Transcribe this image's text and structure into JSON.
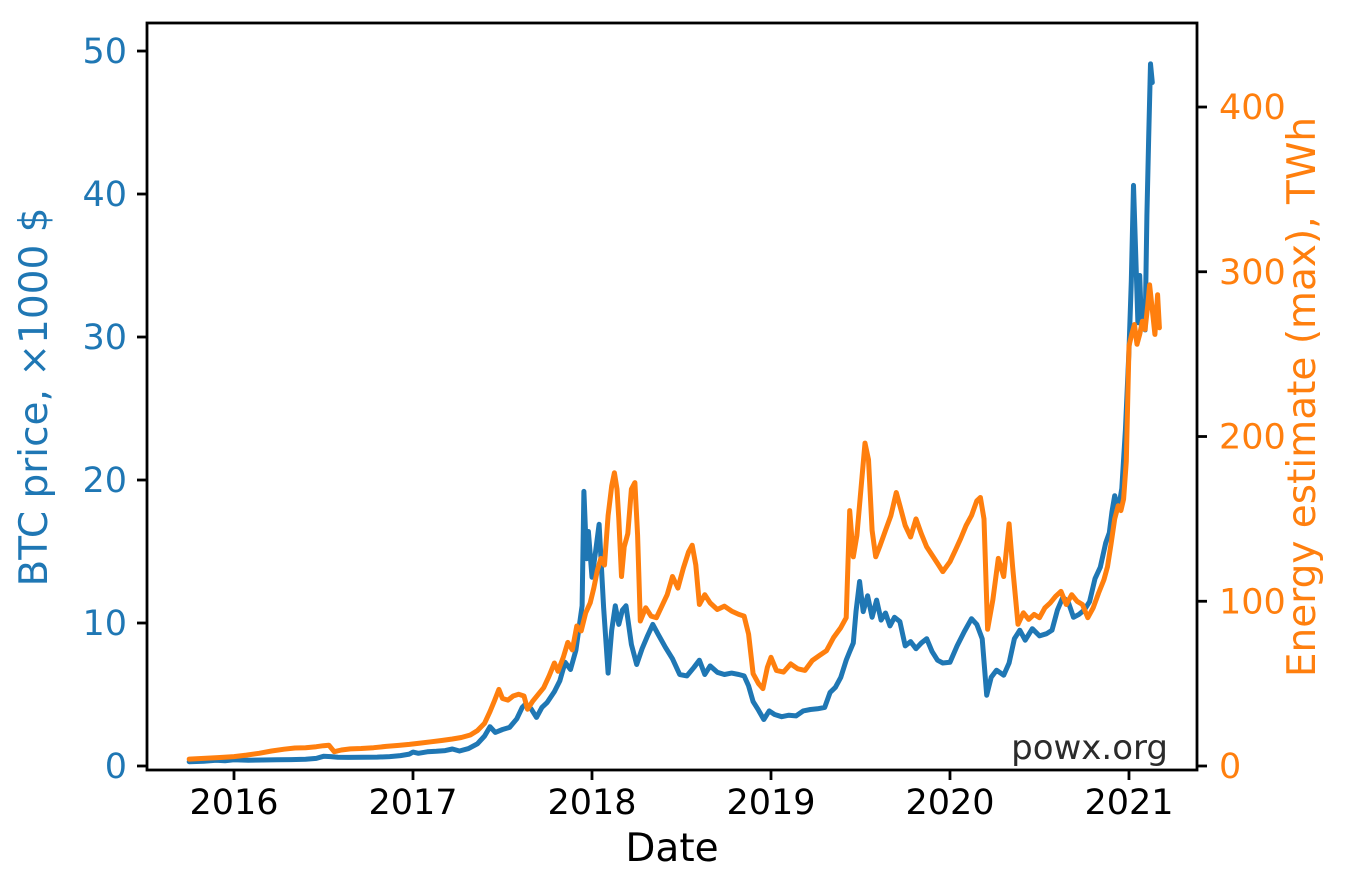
{
  "figure": {
    "watermark": "powx.org",
    "watermark_color": "#2b2b2b",
    "background": "#ffffff"
  },
  "chart_data": {
    "type": "line",
    "title": "",
    "xlabel": "Date",
    "ylabel_left": "BTC price, ×1000 $",
    "ylabel_right": "Energy estimate (max), TWh",
    "grid": false,
    "legend_position": "none",
    "x_ticks": [
      2016,
      2017,
      2018,
      2019,
      2020,
      2021
    ],
    "y_ticks_left": [
      0,
      10,
      20,
      30,
      40,
      50
    ],
    "y_ticks_right": [
      0,
      100,
      200,
      300,
      400
    ],
    "xlim": [
      2015.514,
      2021.38
    ],
    "ylim_left": [
      -0.28,
      51.96
    ],
    "ylim_right": [
      -2.43,
      451.0
    ],
    "tick_label_colors": {
      "x": "#000000",
      "left": "#1f77b4",
      "right": "#ff7f0e"
    },
    "axis_color": "#000000",
    "series": [
      {
        "id": "btc-price-line",
        "name": "BTC price, ×1000 $",
        "axis": "left",
        "color": "#1f77b4",
        "x": [
          2015.75,
          2015.83,
          2015.9,
          2015.95,
          2016.0,
          2016.08,
          2016.16,
          2016.24,
          2016.32,
          2016.4,
          2016.46,
          2016.5,
          2016.54,
          2016.58,
          2016.64,
          2016.72,
          2016.8,
          2016.87,
          2016.93,
          2016.98,
          2017.0,
          2017.03,
          2017.08,
          2017.13,
          2017.18,
          2017.22,
          2017.26,
          2017.31,
          2017.36,
          2017.4,
          2017.43,
          2017.46,
          2017.5,
          2017.54,
          2017.58,
          2017.61,
          2017.63,
          2017.66,
          2017.69,
          2017.72,
          2017.75,
          2017.79,
          2017.82,
          2017.85,
          2017.88,
          2017.91,
          2017.93,
          2017.945,
          2017.955,
          2017.97,
          2017.98,
          2018.0,
          2018.02,
          2018.04,
          2018.065,
          2018.09,
          2018.11,
          2018.13,
          2018.15,
          2018.17,
          2018.19,
          2018.22,
          2018.25,
          2018.28,
          2018.31,
          2018.34,
          2018.37,
          2018.41,
          2018.45,
          2018.49,
          2018.53,
          2018.57,
          2018.6,
          2018.63,
          2018.66,
          2018.7,
          2018.74,
          2018.78,
          2018.82,
          2018.85,
          2018.875,
          2018.9,
          2018.93,
          2018.96,
          2018.99,
          2019.02,
          2019.06,
          2019.1,
          2019.14,
          2019.18,
          2019.22,
          2019.26,
          2019.3,
          2019.33,
          2019.36,
          2019.39,
          2019.42,
          2019.44,
          2019.46,
          2019.475,
          2019.495,
          2019.515,
          2019.54,
          2019.565,
          2019.59,
          2019.615,
          2019.64,
          2019.665,
          2019.69,
          2019.72,
          2019.75,
          2019.78,
          2019.81,
          2019.84,
          2019.87,
          2019.9,
          2019.93,
          2019.96,
          2020.0,
          2020.04,
          2020.08,
          2020.12,
          2020.15,
          2020.18,
          2020.205,
          2020.23,
          2020.26,
          2020.3,
          2020.33,
          2020.36,
          2020.39,
          2020.42,
          2020.46,
          2020.5,
          2020.54,
          2020.57,
          2020.6,
          2020.63,
          2020.66,
          2020.69,
          2020.72,
          2020.75,
          2020.78,
          2020.81,
          2020.84,
          2020.87,
          2020.89,
          2020.905,
          2020.92,
          2020.94,
          2020.96,
          2020.98,
          2021.0,
          2021.013,
          2021.025,
          2021.038,
          2021.05,
          2021.06,
          2021.07,
          2021.08,
          2021.09,
          2021.1,
          2021.11,
          2021.12,
          2021.13
        ],
        "y": [
          0.3,
          0.33,
          0.4,
          0.37,
          0.43,
          0.4,
          0.42,
          0.44,
          0.45,
          0.47,
          0.53,
          0.68,
          0.66,
          0.61,
          0.6,
          0.61,
          0.62,
          0.66,
          0.73,
          0.83,
          0.97,
          0.89,
          0.99,
          1.03,
          1.08,
          1.19,
          1.05,
          1.22,
          1.55,
          2.1,
          2.75,
          2.35,
          2.55,
          2.7,
          3.3,
          4.1,
          4.35,
          4.0,
          3.4,
          4.1,
          4.45,
          5.2,
          5.95,
          7.25,
          6.75,
          8.1,
          9.9,
          11.2,
          19.2,
          14.5,
          16.4,
          13.2,
          15.0,
          16.9,
          11.1,
          6.5,
          9.5,
          11.2,
          9.9,
          10.9,
          11.2,
          8.5,
          7.1,
          8.2,
          9.1,
          9.9,
          9.2,
          8.3,
          7.5,
          6.4,
          6.3,
          6.9,
          7.4,
          6.4,
          7.0,
          6.55,
          6.4,
          6.5,
          6.4,
          6.3,
          5.6,
          4.5,
          3.9,
          3.25,
          3.85,
          3.6,
          3.45,
          3.55,
          3.5,
          3.85,
          3.95,
          4.0,
          4.1,
          5.15,
          5.5,
          6.2,
          7.4,
          8.0,
          8.6,
          10.8,
          12.9,
          10.8,
          11.9,
          10.4,
          11.6,
          10.2,
          10.7,
          9.8,
          10.4,
          10.1,
          8.4,
          8.7,
          8.2,
          8.6,
          8.9,
          8.0,
          7.4,
          7.2,
          7.25,
          8.4,
          9.4,
          10.3,
          9.9,
          8.9,
          4.95,
          6.2,
          6.7,
          6.35,
          7.2,
          8.9,
          9.5,
          8.8,
          9.6,
          9.1,
          9.25,
          9.5,
          10.9,
          11.8,
          11.5,
          10.4,
          10.6,
          10.9,
          11.5,
          13.1,
          13.9,
          15.6,
          16.3,
          17.8,
          18.9,
          17.9,
          19.4,
          23.5,
          29.1,
          33.9,
          40.6,
          35.6,
          31.0,
          34.3,
          30.8,
          32.5,
          30.5,
          38.5,
          44.0,
          49.1,
          47.8
        ]
      },
      {
        "id": "energy-estimate-line",
        "name": "Energy estimate (max), TWh",
        "axis": "right",
        "color": "#ff7f0e",
        "x": [
          2015.75,
          2015.83,
          2015.91,
          2016.0,
          2016.07,
          2016.14,
          2016.21,
          2016.28,
          2016.34,
          2016.4,
          2016.46,
          2016.5,
          2016.53,
          2016.56,
          2016.6,
          2016.65,
          2016.71,
          2016.78,
          2016.85,
          2016.92,
          2016.98,
          2017.04,
          2017.1,
          2017.16,
          2017.22,
          2017.27,
          2017.32,
          2017.36,
          2017.4,
          2017.43,
          2017.455,
          2017.48,
          2017.5,
          2017.53,
          2017.56,
          2017.59,
          2017.62,
          2017.64,
          2017.67,
          2017.7,
          2017.73,
          2017.76,
          2017.79,
          2017.81,
          2017.84,
          2017.865,
          2017.89,
          2017.915,
          2017.94,
          2017.965,
          2017.99,
          2018.01,
          2018.03,
          2018.05,
          2018.07,
          2018.09,
          2018.11,
          2018.125,
          2018.14,
          2018.15,
          2018.165,
          2018.18,
          2018.2,
          2018.22,
          2018.24,
          2018.255,
          2018.27,
          2018.3,
          2018.33,
          2018.36,
          2018.39,
          2018.42,
          2018.45,
          2018.48,
          2018.51,
          2018.54,
          2018.56,
          2018.58,
          2018.6,
          2018.63,
          2018.66,
          2018.7,
          2018.74,
          2018.78,
          2018.82,
          2018.85,
          2018.875,
          2018.9,
          2018.93,
          2018.955,
          2018.98,
          2019.0,
          2019.03,
          2019.07,
          2019.11,
          2019.15,
          2019.19,
          2019.23,
          2019.27,
          2019.31,
          2019.35,
          2019.39,
          2019.42,
          2019.44,
          2019.46,
          2019.48,
          2019.5,
          2019.525,
          2019.545,
          2019.565,
          2019.585,
          2019.61,
          2019.64,
          2019.67,
          2019.7,
          2019.72,
          2019.75,
          2019.78,
          2019.81,
          2019.84,
          2019.87,
          2019.9,
          2019.93,
          2019.96,
          2020.0,
          2020.03,
          2020.06,
          2020.09,
          2020.12,
          2020.15,
          2020.17,
          2020.19,
          2020.21,
          2020.24,
          2020.27,
          2020.3,
          2020.33,
          2020.35,
          2020.38,
          2020.41,
          2020.44,
          2020.47,
          2020.5,
          2020.53,
          2020.56,
          2020.59,
          2020.62,
          2020.65,
          2020.68,
          2020.71,
          2020.74,
          2020.77,
          2020.8,
          2020.83,
          2020.86,
          2020.88,
          2020.9,
          2020.92,
          2020.94,
          2020.955,
          2020.97,
          2020.985,
          2021.0,
          2021.015,
          2021.03,
          2021.045,
          2021.06,
          2021.075,
          2021.09,
          2021.105,
          2021.115,
          2021.13,
          2021.145,
          2021.16,
          2021.17
        ],
        "y": [
          4.2,
          4.6,
          5.1,
          5.7,
          6.6,
          7.7,
          9.1,
          10.2,
          10.9,
          11.1,
          11.7,
          12.3,
          12.6,
          8.7,
          9.7,
          10.4,
          10.6,
          11.1,
          11.9,
          12.5,
          13.1,
          13.9,
          14.7,
          15.5,
          16.4,
          17.3,
          18.8,
          21.5,
          26.0,
          33.0,
          39.5,
          46.5,
          41.0,
          40.0,
          42.5,
          43.5,
          42.5,
          34.5,
          39.5,
          43.5,
          47.5,
          54.5,
          62.5,
          57.5,
          66.0,
          75.0,
          70.5,
          85.0,
          82.0,
          93.0,
          99.0,
          108.0,
          119.0,
          126.0,
          122.0,
          152.0,
          170.0,
          178.0,
          168.0,
          150.0,
          115.0,
          133.0,
          141.0,
          168.0,
          172.0,
          140.0,
          88.0,
          96.0,
          91.0,
          90.0,
          97.0,
          104.0,
          115.0,
          108.0,
          120.0,
          130.0,
          134.0,
          122.0,
          98.0,
          104.0,
          99.0,
          95.0,
          97.0,
          94.0,
          92.0,
          91.0,
          80.0,
          56.0,
          50.0,
          47.0,
          60.0,
          66.0,
          58.0,
          57.0,
          62.0,
          59.0,
          58.0,
          64.0,
          67.0,
          70.0,
          78.0,
          84.0,
          90.0,
          155.0,
          127.0,
          140.0,
          165.0,
          196.0,
          186.0,
          143.0,
          127.0,
          134.0,
          143.0,
          152.0,
          166.0,
          158.0,
          146.0,
          139.0,
          150.0,
          141.0,
          133.0,
          128.0,
          123.0,
          118.0,
          124.0,
          131.0,
          138.0,
          146.0,
          152.0,
          161.0,
          163.0,
          150.0,
          83.0,
          101.0,
          126.0,
          115.0,
          147.0,
          121.0,
          86.0,
          93.0,
          89.0,
          92.0,
          90.0,
          96.0,
          99.0,
          103.0,
          106.0,
          98.0,
          104.0,
          100.0,
          98.0,
          90.0,
          96.0,
          105.0,
          113.0,
          121.0,
          135.0,
          150.0,
          158.0,
          155.0,
          162.0,
          185.0,
          255.0,
          262.0,
          268.0,
          256.0,
          262.0,
          270.0,
          265.0,
          280.0,
          292.0,
          277.0,
          262.0,
          286.0,
          266.0
        ]
      }
    ]
  }
}
